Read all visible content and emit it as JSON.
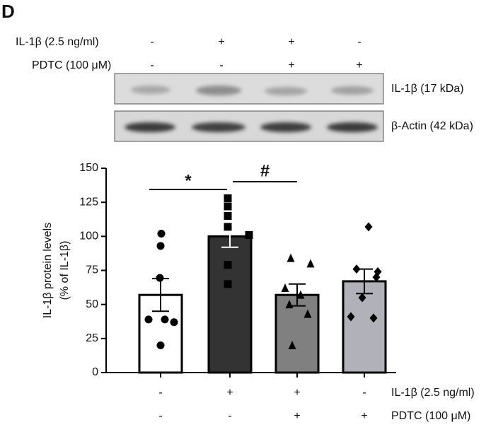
{
  "panel_label": "D",
  "blot": {
    "treatments": [
      {
        "name": "IL-1β  (2.5 ng/ml)",
        "signs": [
          "-",
          "+",
          "+",
          "-"
        ]
      },
      {
        "name": "PDTC (100 μM)",
        "signs": [
          "-",
          "-",
          "+",
          "+"
        ]
      }
    ],
    "bands": [
      "IL-1β (17 kDa)",
      "β-Actin (42 kDa)"
    ]
  },
  "chart_data": {
    "type": "bar",
    "ylabel": [
      "IL-1β protein levels",
      "(% of IL-1β)"
    ],
    "values": [
      57,
      100,
      57,
      67
    ],
    "errors": [
      12,
      8,
      8,
      9
    ],
    "colors": [
      "#ffffff",
      "#333333",
      "#808080",
      "#b1b1b9"
    ],
    "points": [
      [
        102,
        93,
        69.5,
        39,
        39,
        37,
        20
      ],
      [
        128,
        122,
        115,
        107,
        101,
        79,
        65
      ],
      [
        84,
        80,
        62,
        57,
        50,
        43,
        20
      ],
      [
        107,
        76,
        74,
        70,
        55,
        41,
        40
      ]
    ],
    "markers": [
      "circle",
      "square",
      "triangle",
      "diamond"
    ],
    "ylim": [
      0,
      150
    ],
    "yticks": [
      0,
      25,
      50,
      75,
      100,
      125,
      150
    ],
    "annotations": [
      "*",
      "#"
    ],
    "treatments": [
      {
        "name": "IL-1β (2.5 ng/ml)",
        "signs": [
          "-",
          "+",
          "+",
          "-"
        ]
      },
      {
        "name": "PDTC (100 μM)",
        "signs": [
          "-",
          "-",
          "+",
          "+"
        ]
      }
    ]
  }
}
